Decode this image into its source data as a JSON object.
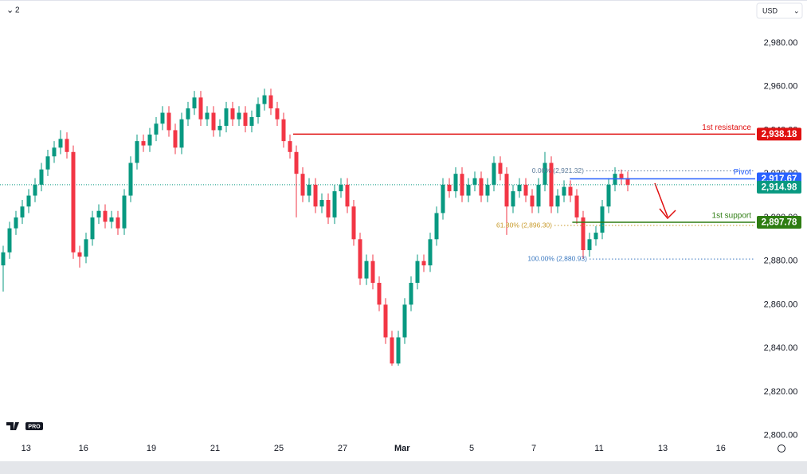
{
  "chart_data": {
    "type": "candlestick",
    "interval": "2",
    "currency": "USD",
    "logo_badge": "PRO",
    "up_color": "#089981",
    "down_color": "#f23645",
    "open": [
      2878,
      2884,
      2895,
      2900,
      2905,
      2910,
      2915,
      2922,
      2928,
      2932,
      2936,
      2930,
      2884,
      2882,
      2890,
      2900,
      2903,
      2898,
      2900,
      2895,
      2910,
      2925,
      2935,
      2933,
      2938,
      2943,
      2948,
      2940,
      2932,
      2945,
      2950,
      2955,
      2945,
      2948,
      2940,
      2942,
      2950,
      2945,
      2948,
      2942,
      2946,
      2952,
      2956,
      2950,
      2945,
      2935,
      2930,
      2920,
      2910,
      2915,
      2905,
      2908,
      2900,
      2912,
      2915,
      2905,
      2890,
      2872,
      2880,
      2870,
      2860,
      2845,
      2833,
      2845,
      2860,
      2870,
      2880,
      2878,
      2890,
      2902,
      2915,
      2912,
      2920,
      2910,
      2915,
      2918,
      2910,
      2915,
      2925,
      2920,
      2905,
      2912,
      2915,
      2910,
      2905,
      2915,
      2925,
      2905,
      2910,
      2914,
      2910,
      2900,
      2885,
      2890,
      2893,
      2905,
      2915,
      2920,
      2918
    ],
    "high": [
      2887,
      2898,
      2903,
      2908,
      2913,
      2918,
      2925,
      2931,
      2935,
      2940,
      2939,
      2933,
      2887,
      2893,
      2903,
      2906,
      2906,
      2903,
      2903,
      2913,
      2928,
      2938,
      2938,
      2941,
      2946,
      2951,
      2951,
      2943,
      2948,
      2953,
      2958,
      2958,
      2951,
      2951,
      2945,
      2953,
      2953,
      2951,
      2951,
      2949,
      2955,
      2959,
      2959,
      2953,
      2948,
      2938,
      2933,
      2923,
      2918,
      2918,
      2911,
      2911,
      2915,
      2918,
      2918,
      2908,
      2893,
      2883,
      2883,
      2873,
      2863,
      2848,
      2848,
      2863,
      2873,
      2883,
      2883,
      2893,
      2905,
      2918,
      2918,
      2923,
      2923,
      2918,
      2921,
      2921,
      2918,
      2928,
      2928,
      2923,
      2915,
      2918,
      2918,
      2913,
      2918,
      2930,
      2928,
      2913,
      2917,
      2917,
      2913,
      2903,
      2893,
      2896,
      2908,
      2918,
      2923,
      2922,
      2921
    ],
    "low": [
      2866,
      2881,
      2892,
      2897,
      2902,
      2907,
      2912,
      2919,
      2925,
      2929,
      2927,
      2881,
      2877,
      2879,
      2887,
      2897,
      2895,
      2895,
      2892,
      2892,
      2907,
      2922,
      2930,
      2930,
      2935,
      2940,
      2937,
      2929,
      2929,
      2942,
      2947,
      2942,
      2942,
      2937,
      2937,
      2939,
      2942,
      2942,
      2939,
      2939,
      2943,
      2949,
      2947,
      2942,
      2932,
      2927,
      2900,
      2907,
      2907,
      2902,
      2902,
      2897,
      2897,
      2909,
      2902,
      2887,
      2869,
      2869,
      2867,
      2857,
      2842,
      2832,
      2832,
      2842,
      2857,
      2867,
      2875,
      2875,
      2887,
      2899,
      2909,
      2909,
      2907,
      2907,
      2912,
      2907,
      2907,
      2912,
      2917,
      2892,
      2902,
      2909,
      2907,
      2902,
      2902,
      2912,
      2902,
      2902,
      2907,
      2907,
      2897,
      2881,
      2882,
      2887,
      2890,
      2902,
      2912,
      2915,
      2912
    ],
    "close": [
      2884,
      2895,
      2900,
      2905,
      2910,
      2915,
      2922,
      2928,
      2932,
      2936,
      2930,
      2884,
      2882,
      2890,
      2900,
      2903,
      2898,
      2900,
      2895,
      2910,
      2925,
      2935,
      2933,
      2938,
      2943,
      2948,
      2940,
      2932,
      2945,
      2950,
      2955,
      2945,
      2948,
      2940,
      2942,
      2950,
      2945,
      2948,
      2942,
      2946,
      2952,
      2956,
      2950,
      2945,
      2935,
      2930,
      2920,
      2910,
      2915,
      2905,
      2908,
      2900,
      2912,
      2915,
      2905,
      2890,
      2872,
      2880,
      2870,
      2860,
      2845,
      2833,
      2845,
      2860,
      2870,
      2880,
      2878,
      2890,
      2902,
      2915,
      2912,
      2920,
      2910,
      2915,
      2918,
      2910,
      2915,
      2925,
      2920,
      2905,
      2912,
      2915,
      2910,
      2905,
      2915,
      2925,
      2905,
      2910,
      2914,
      2910,
      2900,
      2885,
      2890,
      2893,
      2905,
      2915,
      2920,
      2918,
      2914.98
    ],
    "last_price_label": "2,914.98",
    "xlim": [
      -0.5,
      118
    ],
    "xticks": [
      {
        "value": 3.6,
        "label": "13"
      },
      {
        "value": 12.6,
        "label": "16"
      },
      {
        "value": 23.25,
        "label": "19"
      },
      {
        "value": 33.25,
        "label": "21"
      },
      {
        "value": 43.25,
        "label": "25"
      },
      {
        "value": 53.25,
        "label": "27"
      },
      {
        "value": 62.6,
        "label": "Mar"
      },
      {
        "value": 73.5,
        "label": "5"
      },
      {
        "value": 83.25,
        "label": "7"
      },
      {
        "value": 93.5,
        "label": "11"
      },
      {
        "value": 103.5,
        "label": "13"
      },
      {
        "value": 112.6,
        "label": "16"
      }
    ],
    "ylim": [
      2793.3,
      2999.7
    ],
    "yticks": [
      {
        "value": 2800,
        "label": "2,800.00"
      },
      {
        "value": 2820,
        "label": "2,820.00"
      },
      {
        "value": 2840,
        "label": "2,840.00"
      },
      {
        "value": 2860,
        "label": "2,860.00"
      },
      {
        "value": 2880,
        "label": "2,880.00"
      },
      {
        "value": 2900,
        "label": "2,900.00"
      },
      {
        "value": 2920,
        "label": "2,920.00"
      },
      {
        "value": 2940,
        "label": "2,940.00"
      },
      {
        "value": 2960,
        "label": "2,960.00"
      },
      {
        "value": 2980,
        "label": "2,980.00"
      }
    ],
    "levels": [
      {
        "name": "1st resistance",
        "value": 2938.18,
        "value_label": "2,938.18",
        "color": "#e01010",
        "start": 45.5
      },
      {
        "name": "Pivot",
        "value": 2917.67,
        "value_label": "2,917.67",
        "color": "#2962ff",
        "start": 88.9
      },
      {
        "name": "1st support",
        "value": 2897.78,
        "value_label": "2,897.78",
        "color": "#2e7d12",
        "start": 89.3
      }
    ],
    "fib": [
      {
        "label": "0.00% (2,921.32)",
        "value": 2921.32,
        "color": "#5b7a9a",
        "start": 91.5
      },
      {
        "label": "61.80% (2,896.30)",
        "value": 2896.3,
        "color": "#c89a2a",
        "start": 86.5
      },
      {
        "label": "100.00% (2,880.93)",
        "value": 2880.93,
        "color": "#3a78c0",
        "start": 92
      }
    ]
  }
}
